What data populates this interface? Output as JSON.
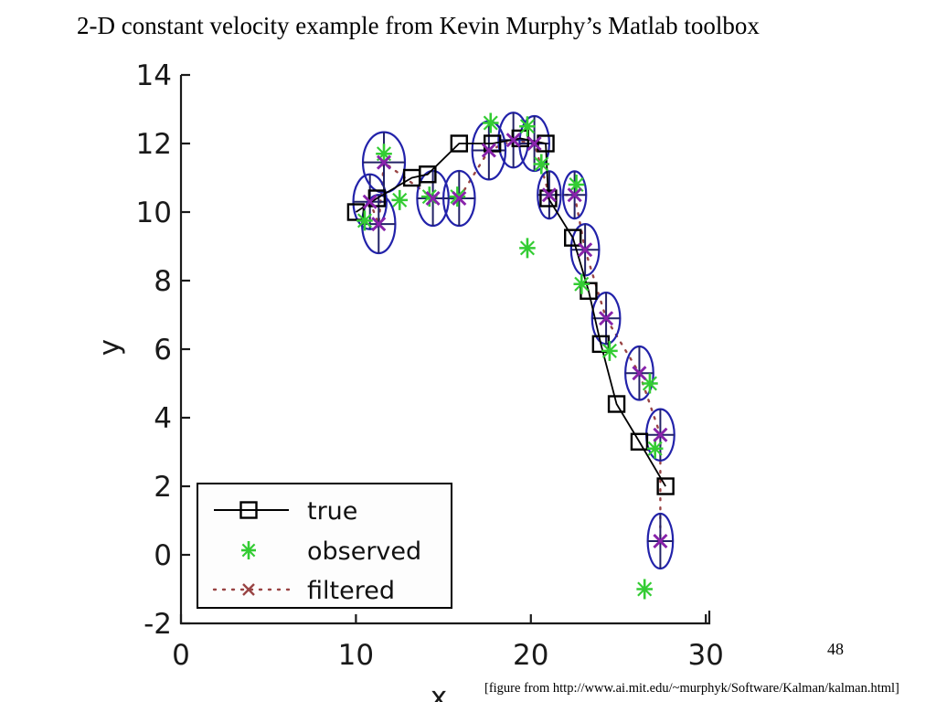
{
  "slide": {
    "title": "2-D constant velocity example from Kevin Murphy’s Matlab toolbox",
    "page_number": "48",
    "caption": "[figure from http://www.ai.mit.edu/~murphyk/Software/Kalman/kalman.html]"
  },
  "chart_data": {
    "type": "scatter",
    "title": "",
    "xlabel": "x",
    "ylabel": "y",
    "xlim": [
      0,
      30.2
    ],
    "ylim": [
      -2,
      14
    ],
    "xticks": [
      0,
      10,
      20,
      30
    ],
    "yticks": [
      -2,
      0,
      2,
      4,
      6,
      8,
      10,
      12,
      14
    ],
    "grid": false,
    "axis_color": "#1a1a1a",
    "legend": {
      "position": "southwest",
      "entries": [
        "true",
        "observed",
        "filtered"
      ]
    },
    "series": [
      {
        "name": "true",
        "marker": "square",
        "marker_color": "#000000",
        "line": "solid",
        "line_color": "#000000",
        "points": [
          [
            10.0,
            10.0
          ],
          [
            11.2,
            10.4
          ],
          [
            13.2,
            11.0
          ],
          [
            14.1,
            11.1
          ],
          [
            15.9,
            12.0
          ],
          [
            17.8,
            12.0
          ],
          [
            19.4,
            12.15
          ],
          [
            20.85,
            12.0
          ],
          [
            21.0,
            10.4
          ],
          [
            22.4,
            9.25
          ],
          [
            23.3,
            7.7
          ],
          [
            24.0,
            6.15
          ],
          [
            24.9,
            4.4
          ],
          [
            26.2,
            3.3
          ],
          [
            27.7,
            2.0
          ]
        ]
      },
      {
        "name": "observed",
        "marker": "asterisk",
        "marker_color": "#33cc33",
        "line": "none",
        "line_color": "none",
        "points": [
          [
            10.5,
            9.75
          ],
          [
            11.6,
            11.7
          ],
          [
            12.5,
            10.35
          ],
          [
            14.2,
            10.45
          ],
          [
            15.8,
            10.45
          ],
          [
            17.7,
            12.6
          ],
          [
            19.8,
            12.5
          ],
          [
            20.6,
            11.4
          ],
          [
            22.6,
            10.8
          ],
          [
            19.8,
            8.95
          ],
          [
            22.9,
            7.9
          ],
          [
            24.5,
            5.95
          ],
          [
            26.8,
            5.0
          ],
          [
            27.1,
            3.1
          ],
          [
            26.5,
            -1.0
          ]
        ]
      },
      {
        "name": "filtered",
        "marker": "x",
        "marker_color": "#8822aa",
        "line": "dotted",
        "line_color": "#994444",
        "ellipse_color": "#2222aa",
        "crosshair_color": "#222266",
        "points": [
          [
            10.8,
            10.3
          ],
          [
            11.3,
            9.65
          ],
          [
            11.6,
            11.45
          ],
          [
            14.4,
            10.4
          ],
          [
            15.9,
            10.4
          ],
          [
            17.6,
            11.8
          ],
          [
            19.0,
            12.1
          ],
          [
            20.2,
            12.0
          ],
          [
            21.05,
            10.5
          ],
          [
            22.5,
            10.5
          ],
          [
            23.1,
            8.9
          ],
          [
            24.3,
            6.9
          ],
          [
            26.2,
            5.3
          ],
          [
            27.4,
            3.5
          ],
          [
            27.4,
            0.4
          ]
        ],
        "covariance_ellipses": [
          {
            "cx": 10.8,
            "cy": 10.3,
            "rx": 0.95,
            "ry": 0.8
          },
          {
            "cx": 11.3,
            "cy": 9.65,
            "rx": 0.95,
            "ry": 0.85
          },
          {
            "cx": 11.6,
            "cy": 11.45,
            "rx": 1.2,
            "ry": 0.88
          },
          {
            "cx": 14.4,
            "cy": 10.4,
            "rx": 0.9,
            "ry": 0.8
          },
          {
            "cx": 15.9,
            "cy": 10.4,
            "rx": 0.9,
            "ry": 0.8
          },
          {
            "cx": 17.6,
            "cy": 11.8,
            "rx": 0.95,
            "ry": 0.85
          },
          {
            "cx": 19.0,
            "cy": 12.1,
            "rx": 0.85,
            "ry": 0.8
          },
          {
            "cx": 20.2,
            "cy": 12.0,
            "rx": 0.85,
            "ry": 0.8
          },
          {
            "cx": 21.05,
            "cy": 10.5,
            "rx": 0.66,
            "ry": 0.69
          },
          {
            "cx": 22.5,
            "cy": 10.5,
            "rx": 0.66,
            "ry": 0.69
          },
          {
            "cx": 23.1,
            "cy": 8.9,
            "rx": 0.8,
            "ry": 0.75
          },
          {
            "cx": 24.3,
            "cy": 6.9,
            "rx": 0.8,
            "ry": 0.75
          },
          {
            "cx": 26.2,
            "cy": 5.3,
            "rx": 0.8,
            "ry": 0.78
          },
          {
            "cx": 27.4,
            "cy": 3.5,
            "rx": 0.8,
            "ry": 0.75
          },
          {
            "cx": 27.4,
            "cy": 0.4,
            "rx": 0.72,
            "ry": 0.8
          }
        ]
      }
    ]
  }
}
